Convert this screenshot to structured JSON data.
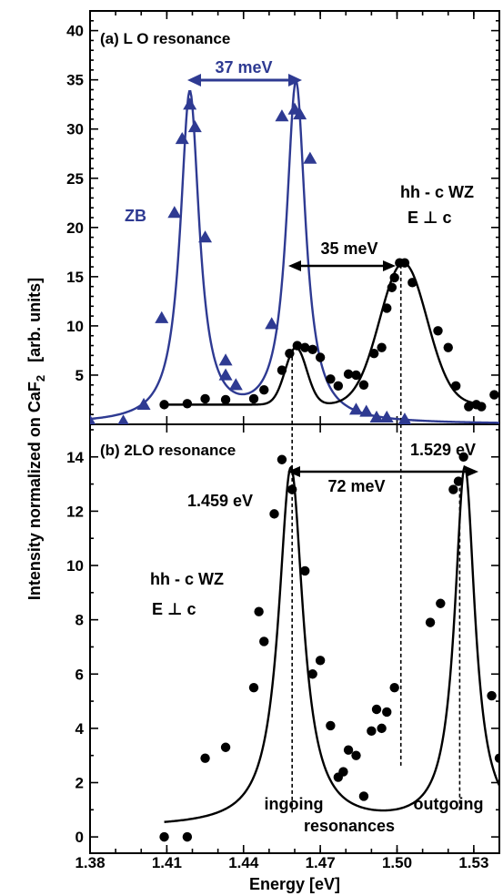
{
  "axis": {
    "xlabel": "Energy [eV]",
    "ylabel_prefix": "Intensity normalized on CaF",
    "ylabel_sub": "2",
    "ylabel_units": "[arb. units]",
    "x_ticks": [
      "1.38",
      "1.41",
      "1.44",
      "1.47",
      "1.50",
      "1.53"
    ]
  },
  "colors": {
    "zb": "#2e3a92",
    "wz": "#000000"
  },
  "chart_data": [
    {
      "type": "scatter",
      "title": "(a) L O resonance",
      "xlabel": "Energy [eV]",
      "ylabel": "Intensity normalized on CaF2 [arb. units]",
      "xlim": [
        1.38,
        1.54
      ],
      "ylim": [
        0,
        42
      ],
      "y_ticks": [
        "5",
        "10",
        "15",
        "20",
        "25",
        "30",
        "35",
        "40"
      ],
      "annotations": {
        "zb_label": "ZB",
        "wz_label_1": "hh - c WZ",
        "wz_label_2": "E ⊥ c",
        "split_zb": "37 meV",
        "split_wz": "35 meV"
      },
      "series": [
        {
          "name": "ZB",
          "marker": "triangle",
          "points": [
            [
              1.38,
              0.3
            ],
            [
              1.393,
              0.3
            ],
            [
              1.401,
              2.0
            ],
            [
              1.408,
              10.8
            ],
            [
              1.413,
              21.5
            ],
            [
              1.416,
              29.0
            ],
            [
              1.419,
              32.5
            ],
            [
              1.421,
              30.2
            ],
            [
              1.425,
              19.0
            ],
            [
              1.433,
              6.5
            ],
            [
              1.433,
              5.0
            ],
            [
              1.437,
              4.0
            ],
            [
              1.451,
              10.2
            ],
            [
              1.455,
              31.3
            ],
            [
              1.46,
              32.0
            ],
            [
              1.462,
              31.5
            ],
            [
              1.466,
              27.0
            ],
            [
              1.484,
              1.5
            ],
            [
              1.488,
              1.3
            ],
            [
              1.492,
              0.7
            ],
            [
              1.496,
              0.7
            ],
            [
              1.503,
              0.5
            ]
          ]
        },
        {
          "name": "hh - c WZ",
          "marker": "circle",
          "points": [
            [
              1.409,
              2.0
            ],
            [
              1.418,
              2.1
            ],
            [
              1.425,
              2.6
            ],
            [
              1.433,
              2.5
            ],
            [
              1.444,
              2.6
            ],
            [
              1.448,
              3.5
            ],
            [
              1.455,
              5.5
            ],
            [
              1.458,
              7.2
            ],
            [
              1.461,
              8.0
            ],
            [
              1.464,
              7.8
            ],
            [
              1.467,
              7.6
            ],
            [
              1.47,
              6.8
            ],
            [
              1.474,
              4.6
            ],
            [
              1.477,
              3.9
            ],
            [
              1.481,
              5.1
            ],
            [
              1.484,
              5.0
            ],
            [
              1.487,
              4.0
            ],
            [
              1.491,
              7.2
            ],
            [
              1.494,
              7.8
            ],
            [
              1.496,
              11.8
            ],
            [
              1.498,
              13.9
            ],
            [
              1.499,
              14.9
            ],
            [
              1.501,
              16.4
            ],
            [
              1.503,
              16.4
            ],
            [
              1.506,
              14.4
            ],
            [
              1.516,
              9.5
            ],
            [
              1.52,
              7.8
            ],
            [
              1.523,
              3.9
            ],
            [
              1.528,
              1.8
            ],
            [
              1.531,
              2.0
            ],
            [
              1.533,
              1.8
            ],
            [
              1.538,
              3.0
            ]
          ]
        }
      ]
    },
    {
      "type": "scatter",
      "title": "(b) 2LO resonance",
      "xlabel": "Energy [eV]",
      "ylabel": "Intensity normalized on CaF2 [arb. units]",
      "xlim": [
        1.38,
        1.54
      ],
      "ylim": [
        -0.6,
        15.2
      ],
      "y_ticks": [
        "0",
        "2",
        "4",
        "6",
        "8",
        "10",
        "12",
        "14"
      ],
      "annotations": {
        "wz_label_1": "hh - c WZ",
        "wz_label_2": "E ⊥ c",
        "peak_in": "1.459 eV",
        "peak_out": "1.529 eV",
        "split": "72 meV",
        "ingoing": "ingoing",
        "outgoing": "outgoing",
        "resonances": "resonances"
      },
      "series": [
        {
          "name": "hh - c WZ",
          "marker": "circle",
          "points": [
            [
              1.409,
              0.0
            ],
            [
              1.418,
              0.0
            ],
            [
              1.425,
              2.9
            ],
            [
              1.433,
              3.3
            ],
            [
              1.444,
              5.5
            ],
            [
              1.446,
              8.3
            ],
            [
              1.448,
              7.2
            ],
            [
              1.452,
              11.9
            ],
            [
              1.455,
              13.9
            ],
            [
              1.459,
              12.8
            ],
            [
              1.464,
              9.8
            ],
            [
              1.467,
              6.0
            ],
            [
              1.47,
              6.5
            ],
            [
              1.474,
              4.1
            ],
            [
              1.477,
              2.2
            ],
            [
              1.479,
              2.4
            ],
            [
              1.481,
              3.2
            ],
            [
              1.484,
              3.0
            ],
            [
              1.487,
              1.5
            ],
            [
              1.49,
              3.9
            ],
            [
              1.492,
              4.7
            ],
            [
              1.494,
              4.0
            ],
            [
              1.496,
              4.6
            ],
            [
              1.499,
              5.5
            ],
            [
              1.513,
              7.9
            ],
            [
              1.517,
              8.6
            ],
            [
              1.522,
              12.8
            ],
            [
              1.524,
              13.1
            ],
            [
              1.526,
              14.0
            ],
            [
              1.537,
              5.2
            ],
            [
              1.54,
              2.9
            ]
          ]
        }
      ]
    }
  ]
}
